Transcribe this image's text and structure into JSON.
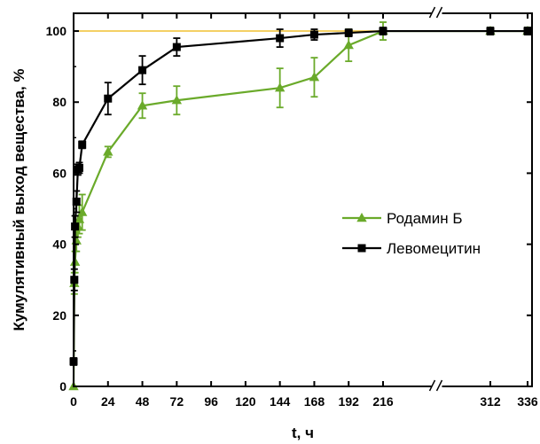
{
  "chart_data": {
    "type": "line",
    "xlabel": "t, ч",
    "ylabel": "Кумулятивный выход вещества, %",
    "ylim": [
      0,
      105
    ],
    "x_ticks": [
      0,
      24,
      48,
      72,
      96,
      120,
      144,
      168,
      192,
      216,
      312,
      336
    ],
    "y_ticks": [
      0,
      20,
      40,
      60,
      80,
      100
    ],
    "x_axis_break": {
      "after": 216,
      "before": 312
    },
    "reference_line": {
      "y": 100,
      "color": "#f0c030"
    },
    "legend_position": "center-right",
    "series": [
      {
        "name": "Родамин Б",
        "color": "#6aaa2a",
        "marker": "triangle",
        "points": [
          {
            "x": 0,
            "y": 0,
            "err": 0
          },
          {
            "x": 0.5,
            "y": 29,
            "err": 3
          },
          {
            "x": 1,
            "y": 35,
            "err": 3
          },
          {
            "x": 2,
            "y": 41,
            "err": 3
          },
          {
            "x": 3,
            "y": 45,
            "err": 3
          },
          {
            "x": 4,
            "y": 47,
            "err": 4
          },
          {
            "x": 6,
            "y": 49,
            "err": 5
          },
          {
            "x": 24,
            "y": 66,
            "err": 1.5
          },
          {
            "x": 48,
            "y": 79,
            "err": 3.5
          },
          {
            "x": 72,
            "y": 80.5,
            "err": 4
          },
          {
            "x": 144,
            "y": 84,
            "err": 5.5
          },
          {
            "x": 168,
            "y": 87,
            "err": 5.5
          },
          {
            "x": 192,
            "y": 96,
            "err": 4.5
          },
          {
            "x": 216,
            "y": 100,
            "err": 2.5
          },
          {
            "x": 312,
            "y": 100,
            "err": 1
          },
          {
            "x": 336,
            "y": 100,
            "err": 1
          }
        ]
      },
      {
        "name": "Левомецитин",
        "color": "#000000",
        "marker": "square",
        "points": [
          {
            "x": 0,
            "y": 7,
            "err": 1
          },
          {
            "x": 0.5,
            "y": 30,
            "err": 3
          },
          {
            "x": 1,
            "y": 45,
            "err": 3
          },
          {
            "x": 2,
            "y": 52,
            "err": 3
          },
          {
            "x": 3,
            "y": 61,
            "err": 1.5
          },
          {
            "x": 4,
            "y": 61.5,
            "err": 1.5
          },
          {
            "x": 6,
            "y": 68,
            "err": 1
          },
          {
            "x": 24,
            "y": 81,
            "err": 4.5
          },
          {
            "x": 48,
            "y": 89,
            "err": 4
          },
          {
            "x": 72,
            "y": 95.5,
            "err": 2.5
          },
          {
            "x": 144,
            "y": 98,
            "err": 2.5
          },
          {
            "x": 168,
            "y": 99,
            "err": 1.5
          },
          {
            "x": 192,
            "y": 99.5,
            "err": 1
          },
          {
            "x": 216,
            "y": 100,
            "err": 1
          },
          {
            "x": 312,
            "y": 100,
            "err": 1
          },
          {
            "x": 336,
            "y": 100,
            "err": 1
          }
        ]
      }
    ]
  }
}
